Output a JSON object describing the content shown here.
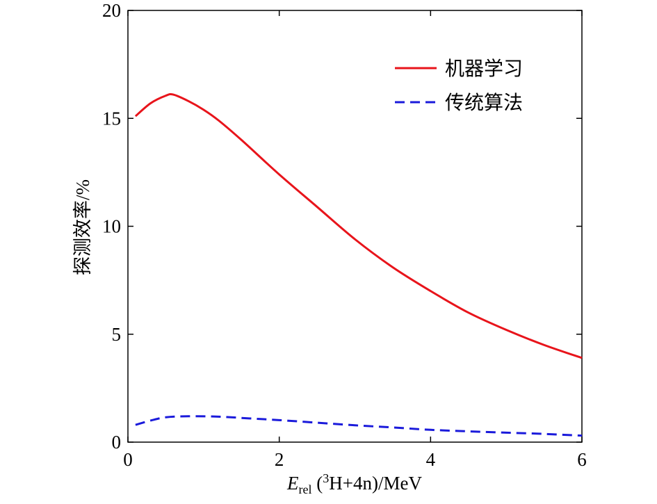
{
  "chart_data": {
    "type": "line",
    "xlabel": {
      "symbol": "E",
      "subscript": "rel",
      "superscript": "3",
      "rest": "H+4n)/MeV",
      "open": " ("
    },
    "ylabel": "探测效率/%",
    "xlim": [
      0,
      6
    ],
    "ylim": [
      0,
      20
    ],
    "xticks": [
      0,
      2,
      4,
      6
    ],
    "yticks": [
      0,
      5,
      10,
      15,
      20
    ],
    "grid": false,
    "legend_position": "top-right",
    "series": [
      {
        "name": "机器学习",
        "color": "#e8141b",
        "style": "solid",
        "x": [
          0.1,
          0.3,
          0.5,
          0.6,
          0.8,
          1.0,
          1.2,
          1.5,
          2.0,
          2.5,
          3.0,
          3.5,
          4.0,
          4.5,
          5.0,
          5.5,
          6.0
        ],
        "y": [
          15.1,
          15.7,
          16.05,
          16.1,
          15.8,
          15.4,
          14.9,
          14.0,
          12.4,
          10.9,
          9.4,
          8.1,
          7.0,
          6.0,
          5.2,
          4.5,
          3.9
        ]
      },
      {
        "name": "传统算法",
        "color": "#1a1adb",
        "style": "dashed",
        "x": [
          0.1,
          0.3,
          0.5,
          0.8,
          1.2,
          1.6,
          2.0,
          2.5,
          3.0,
          3.5,
          4.0,
          4.5,
          5.0,
          5.5,
          6.0
        ],
        "y": [
          0.8,
          1.0,
          1.15,
          1.2,
          1.18,
          1.1,
          1.02,
          0.9,
          0.78,
          0.68,
          0.57,
          0.5,
          0.44,
          0.38,
          0.3
        ]
      }
    ]
  }
}
